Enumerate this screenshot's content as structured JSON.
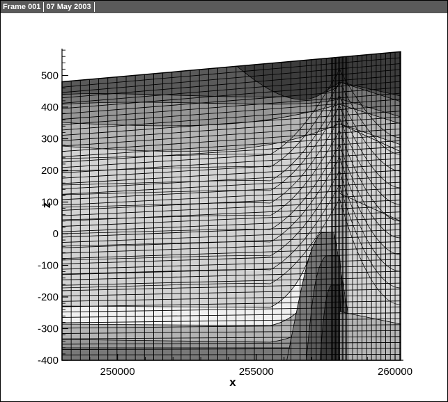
{
  "header": {
    "frame_label": "Frame 001",
    "date_label": "07 May 2003"
  },
  "chart_data": {
    "type": "heatmap",
    "title": "",
    "xlabel": "x",
    "ylabel": "z",
    "xlim": [
      248000,
      260300
    ],
    "ylim": [
      -400,
      600
    ],
    "x_ticks": [
      250000,
      255000,
      260000
    ],
    "x_tick_labels": [
      "250000",
      "255000",
      "260000"
    ],
    "y_ticks": [
      -400,
      -300,
      -200,
      -100,
      0,
      100,
      200,
      300,
      400,
      500
    ],
    "y_tick_labels": [
      "-400",
      "-300",
      "-200",
      "-100",
      "0",
      "100",
      "200",
      "300",
      "400",
      "500"
    ],
    "top_surface": {
      "x": [
        248000,
        260200
      ],
      "z": [
        480,
        575
      ]
    },
    "contour_bands_gray": [
      "#1e1e1e",
      "#3c3c3c",
      "#5a5a5a",
      "#787878",
      "#969696",
      "#b4b4b4",
      "#d2d2d2",
      "#f0f0f0"
    ],
    "grid_mesh": true
  }
}
